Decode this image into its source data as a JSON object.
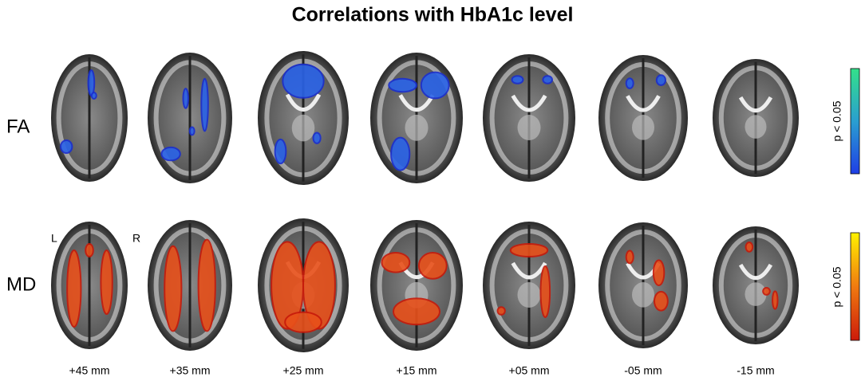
{
  "title": "Correlations with HbA1c level",
  "rows": [
    {
      "label": "FA",
      "colorbar_label": "p < 0.05"
    },
    {
      "label": "MD",
      "colorbar_label": "p < 0.05"
    }
  ],
  "side_labels": {
    "left": "L",
    "right": "R"
  },
  "slices": [
    "+45 mm",
    "+35 mm",
    "+25 mm",
    "+15 mm",
    "+05 mm",
    "-05 mm",
    "-15 mm"
  ]
}
